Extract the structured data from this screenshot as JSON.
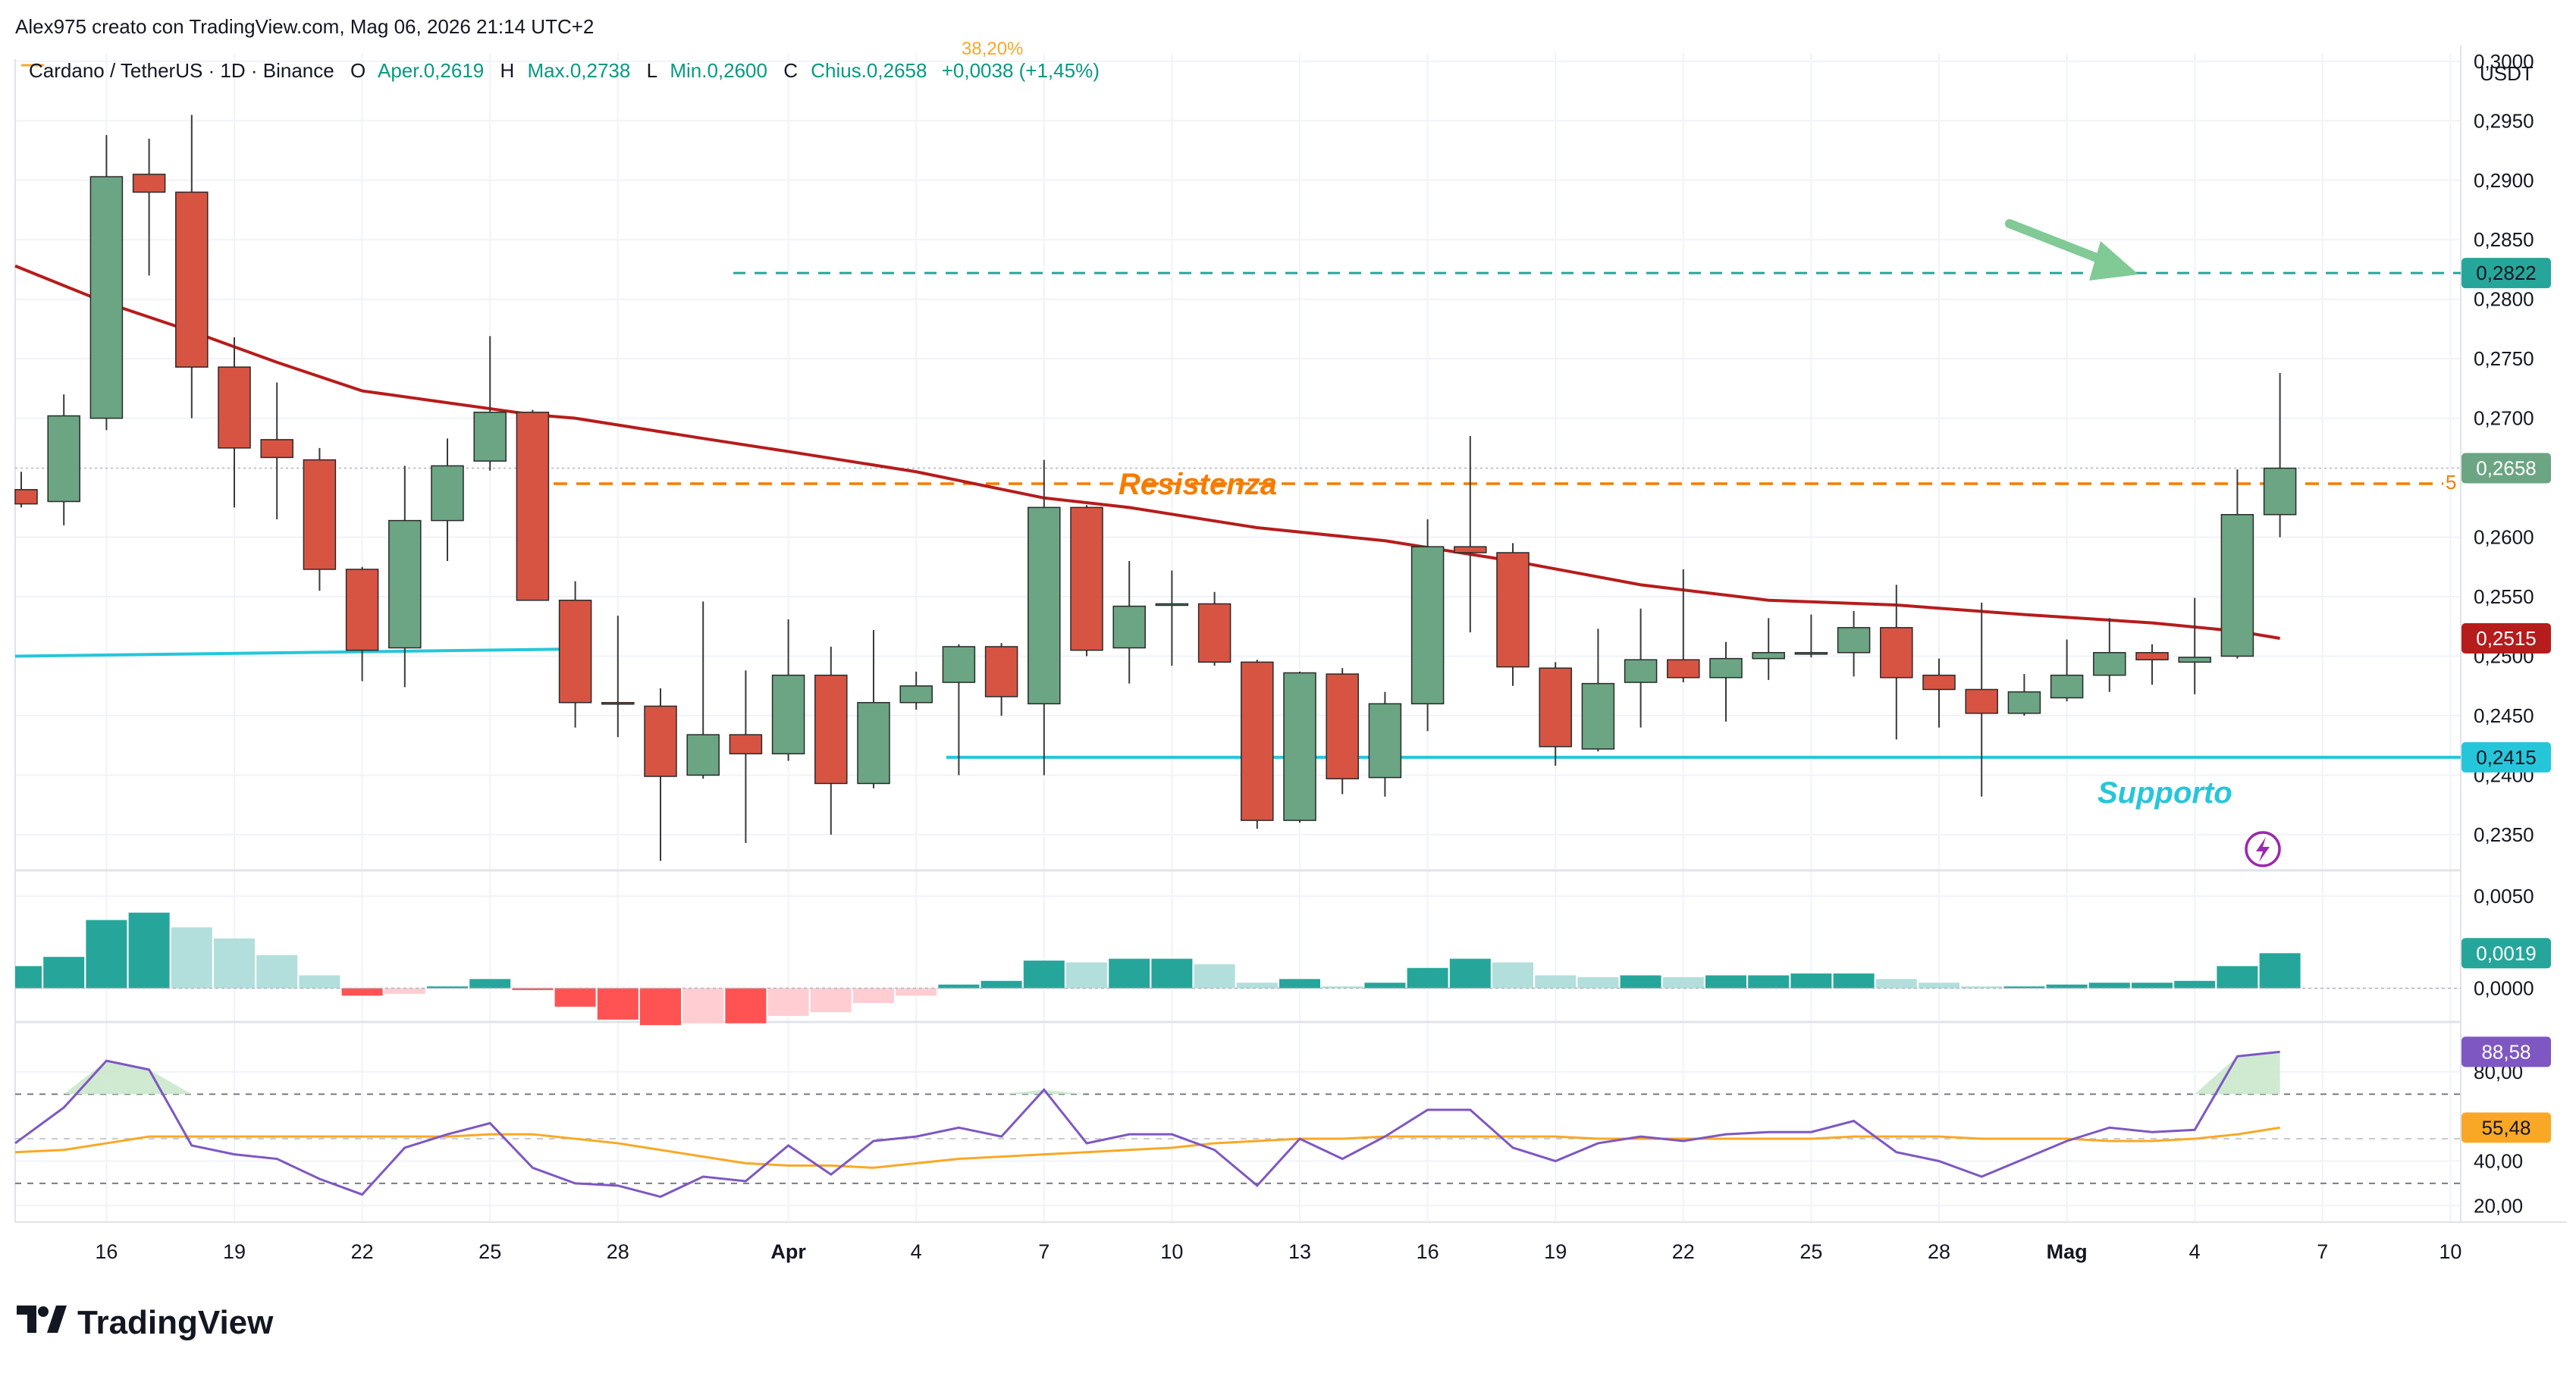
{
  "header": {
    "author_line": "Alex975 creato con TradingView.com, Mag 06, 2026 21:14 UTC+2",
    "symbol_line": "Cardano / TetherUS · 1D · Binance",
    "open_label": "O",
    "open_text": "Aper.0,2619",
    "high_label": "H",
    "high_text": "Max.0,2738",
    "low_label": "L",
    "low_text": "Min.0,2600",
    "close_label": "C",
    "close_text": "Chius.0,2658",
    "change_text": "+0,0038 (+1,45%)",
    "fib_label": "38,20%"
  },
  "axis": {
    "currency": "USDT",
    "price_ticks": [
      "0,3000",
      "0,2950",
      "0,2900",
      "0,2850",
      "0,2800",
      "0,2750",
      "0,2700",
      "0,2600",
      "0,2550",
      "0,2500",
      "0,2450",
      "0,2400",
      "0,2350"
    ],
    "macd_ticks": [
      "0,0050",
      "0,0000"
    ],
    "rsi_ticks": [
      "80,00",
      "40,00",
      "20,00"
    ],
    "x_ticks": [
      {
        "label": "16",
        "i": 2,
        "bold": false
      },
      {
        "label": "19",
        "i": 5,
        "bold": false
      },
      {
        "label": "22",
        "i": 8,
        "bold": false
      },
      {
        "label": "25",
        "i": 11,
        "bold": false
      },
      {
        "label": "28",
        "i": 14,
        "bold": false
      },
      {
        "label": "Apr",
        "i": 18,
        "bold": true
      },
      {
        "label": "4",
        "i": 21,
        "bold": false
      },
      {
        "label": "7",
        "i": 24,
        "bold": false
      },
      {
        "label": "10",
        "i": 27,
        "bold": false
      },
      {
        "label": "13",
        "i": 30,
        "bold": false
      },
      {
        "label": "16",
        "i": 33,
        "bold": false
      },
      {
        "label": "19",
        "i": 36,
        "bold": false
      },
      {
        "label": "22",
        "i": 39,
        "bold": false
      },
      {
        "label": "25",
        "i": 42,
        "bold": false
      },
      {
        "label": "28",
        "i": 45,
        "bold": false
      },
      {
        "label": "Mag",
        "i": 48,
        "bold": true
      },
      {
        "label": "4",
        "i": 51,
        "bold": false
      },
      {
        "label": "7",
        "i": 54,
        "bold": false
      },
      {
        "label": "10",
        "i": 57,
        "bold": false
      }
    ]
  },
  "badges": {
    "target": "0,2822",
    "last_price": "0,2658",
    "ma": "0,2515",
    "support": "0,2415",
    "macd": "0,0019",
    "rsi": "88,58",
    "rsi_ma": "55,48"
  },
  "annotations": {
    "resistance": "Resistenza",
    "support": "Supporto",
    "fib_right": "5"
  },
  "colors": {
    "up": "#6ba583",
    "down": "#d75442",
    "ma": "#b71c1c",
    "resistance": "#f57c00",
    "support": "#26c6da",
    "target": "#26a69a",
    "rsi": "#7e57c2",
    "rsi_ma": "#f9a825",
    "hist_up_strong": "#26a69a",
    "hist_up_weak": "#b2dfdb",
    "hist_down_strong": "#ff5252",
    "hist_down_weak": "#ffcdd2",
    "arrow": "#81c995"
  },
  "logo": {
    "text": "TradingView"
  },
  "chart_data": {
    "type": "candlestick",
    "symbol": "Cardano / TetherUS",
    "timeframe": "1D",
    "exchange": "Binance",
    "price_range": [
      0.232,
      0.3012
    ],
    "ohlc": [
      {
        "o": 0.264,
        "h": 0.2655,
        "l": 0.2625,
        "c": 0.2628
      },
      {
        "o": 0.263,
        "h": 0.272,
        "l": 0.261,
        "c": 0.2702
      },
      {
        "o": 0.27,
        "h": 0.2938,
        "l": 0.269,
        "c": 0.2903
      },
      {
        "o": 0.2905,
        "h": 0.2935,
        "l": 0.282,
        "c": 0.289
      },
      {
        "o": 0.289,
        "h": 0.2955,
        "l": 0.27,
        "c": 0.2743
      },
      {
        "o": 0.2743,
        "h": 0.2768,
        "l": 0.2625,
        "c": 0.2675
      },
      {
        "o": 0.2682,
        "h": 0.273,
        "l": 0.2615,
        "c": 0.2667
      },
      {
        "o": 0.2665,
        "h": 0.2675,
        "l": 0.2555,
        "c": 0.2573
      },
      {
        "o": 0.2573,
        "h": 0.2575,
        "l": 0.2479,
        "c": 0.2505
      },
      {
        "o": 0.2507,
        "h": 0.266,
        "l": 0.2474,
        "c": 0.2614
      },
      {
        "o": 0.2614,
        "h": 0.2683,
        "l": 0.258,
        "c": 0.266
      },
      {
        "o": 0.2664,
        "h": 0.2769,
        "l": 0.2656,
        "c": 0.2705
      },
      {
        "o": 0.2705,
        "h": 0.2707,
        "l": 0.2548,
        "c": 0.2547
      },
      {
        "o": 0.2547,
        "h": 0.2563,
        "l": 0.244,
        "c": 0.2461
      },
      {
        "o": 0.2461,
        "h": 0.2534,
        "l": 0.2432,
        "c": 0.246
      },
      {
        "o": 0.2458,
        "h": 0.2473,
        "l": 0.2328,
        "c": 0.2399
      },
      {
        "o": 0.24,
        "h": 0.2546,
        "l": 0.2397,
        "c": 0.2434
      },
      {
        "o": 0.2434,
        "h": 0.2488,
        "l": 0.2343,
        "c": 0.2418
      },
      {
        "o": 0.2418,
        "h": 0.2531,
        "l": 0.2412,
        "c": 0.2484
      },
      {
        "o": 0.2484,
        "h": 0.2508,
        "l": 0.235,
        "c": 0.2393
      },
      {
        "o": 0.2393,
        "h": 0.2522,
        "l": 0.2389,
        "c": 0.2461
      },
      {
        "o": 0.2461,
        "h": 0.2487,
        "l": 0.2455,
        "c": 0.2475
      },
      {
        "o": 0.2478,
        "h": 0.251,
        "l": 0.24,
        "c": 0.2508
      },
      {
        "o": 0.2508,
        "h": 0.2511,
        "l": 0.245,
        "c": 0.2466
      },
      {
        "o": 0.246,
        "h": 0.2665,
        "l": 0.24,
        "c": 0.2625
      },
      {
        "o": 0.2625,
        "h": 0.2627,
        "l": 0.25,
        "c": 0.2505
      },
      {
        "o": 0.2507,
        "h": 0.258,
        "l": 0.2477,
        "c": 0.2542
      },
      {
        "o": 0.2543,
        "h": 0.2572,
        "l": 0.2492,
        "c": 0.2544
      },
      {
        "o": 0.2544,
        "h": 0.2554,
        "l": 0.2492,
        "c": 0.2495
      },
      {
        "o": 0.2495,
        "h": 0.2497,
        "l": 0.2355,
        "c": 0.2362
      },
      {
        "o": 0.2362,
        "h": 0.2487,
        "l": 0.236,
        "c": 0.2486
      },
      {
        "o": 0.2485,
        "h": 0.249,
        "l": 0.2384,
        "c": 0.2397
      },
      {
        "o": 0.2398,
        "h": 0.247,
        "l": 0.2382,
        "c": 0.246
      },
      {
        "o": 0.246,
        "h": 0.2615,
        "l": 0.2437,
        "c": 0.2592
      },
      {
        "o": 0.2592,
        "h": 0.2685,
        "l": 0.252,
        "c": 0.2587
      },
      {
        "o": 0.2587,
        "h": 0.2595,
        "l": 0.2475,
        "c": 0.2491
      },
      {
        "o": 0.249,
        "h": 0.2495,
        "l": 0.2408,
        "c": 0.2424
      },
      {
        "o": 0.2422,
        "h": 0.2523,
        "l": 0.242,
        "c": 0.2477
      },
      {
        "o": 0.2478,
        "h": 0.254,
        "l": 0.244,
        "c": 0.2497
      },
      {
        "o": 0.2497,
        "h": 0.2573,
        "l": 0.2478,
        "c": 0.2482
      },
      {
        "o": 0.2482,
        "h": 0.2512,
        "l": 0.2445,
        "c": 0.2498
      },
      {
        "o": 0.2498,
        "h": 0.2532,
        "l": 0.248,
        "c": 0.2503
      },
      {
        "o": 0.2503,
        "h": 0.2535,
        "l": 0.2499,
        "c": 0.2503
      },
      {
        "o": 0.2503,
        "h": 0.2538,
        "l": 0.2483,
        "c": 0.2524
      },
      {
        "o": 0.2524,
        "h": 0.256,
        "l": 0.243,
        "c": 0.2482
      },
      {
        "o": 0.2484,
        "h": 0.2498,
        "l": 0.244,
        "c": 0.2472
      },
      {
        "o": 0.2472,
        "h": 0.2545,
        "l": 0.2382,
        "c": 0.2452
      },
      {
        "o": 0.2452,
        "h": 0.2485,
        "l": 0.245,
        "c": 0.247
      },
      {
        "o": 0.2465,
        "h": 0.2514,
        "l": 0.2462,
        "c": 0.2484
      },
      {
        "o": 0.2484,
        "h": 0.2532,
        "l": 0.247,
        "c": 0.2503
      },
      {
        "o": 0.2503,
        "h": 0.251,
        "l": 0.2476,
        "c": 0.2497
      },
      {
        "o": 0.2495,
        "h": 0.2549,
        "l": 0.2468,
        "c": 0.2499
      },
      {
        "o": 0.25,
        "h": 0.2657,
        "l": 0.2498,
        "c": 0.2619
      },
      {
        "o": 0.2619,
        "h": 0.2738,
        "l": 0.26,
        "c": 0.2658
      }
    ],
    "ma_line": [
      {
        "i": 0,
        "v": 0.2828
      },
      {
        "i": 2,
        "v": 0.2797
      },
      {
        "i": 4,
        "v": 0.2773
      },
      {
        "i": 6,
        "v": 0.2747
      },
      {
        "i": 8,
        "v": 0.2723
      },
      {
        "i": 10,
        "v": 0.2713
      },
      {
        "i": 12,
        "v": 0.2703
      },
      {
        "i": 13,
        "v": 0.27
      },
      {
        "i": 16,
        "v": 0.2683
      },
      {
        "i": 18,
        "v": 0.2672
      },
      {
        "i": 21,
        "v": 0.2655
      },
      {
        "i": 24,
        "v": 0.2633
      },
      {
        "i": 26,
        "v": 0.2625
      },
      {
        "i": 29,
        "v": 0.2608
      },
      {
        "i": 32,
        "v": 0.2597
      },
      {
        "i": 35,
        "v": 0.258
      },
      {
        "i": 38,
        "v": 0.256
      },
      {
        "i": 41,
        "v": 0.2547
      },
      {
        "i": 44,
        "v": 0.2543
      },
      {
        "i": 47,
        "v": 0.2535
      },
      {
        "i": 50,
        "v": 0.2528
      },
      {
        "i": 52,
        "v": 0.2521
      },
      {
        "i": 53,
        "v": 0.2515
      }
    ],
    "levels": {
      "resistance": 0.2645,
      "support": 0.2415,
      "target": 0.2822,
      "last": 0.2658,
      "ma_last": 0.2515,
      "old_support_line": [
        {
          "i": 0,
          "v": 0.25
        },
        {
          "i": 12.9,
          "v": 0.2506
        }
      ]
    },
    "macd_hist": {
      "range": [
        -0.0015,
        0.0059
      ],
      "values": [
        0.0012,
        0.0017,
        0.0037,
        0.0041,
        0.0033,
        0.0027,
        0.0018,
        0.0007,
        -0.0004,
        -0.0003,
        0.0001,
        0.0005,
        -0.0001,
        -0.001,
        -0.0017,
        -0.002,
        -0.0019,
        -0.0019,
        -0.0015,
        -0.0013,
        -0.0008,
        -0.0004,
        0.0002,
        0.0004,
        0.0015,
        0.0014,
        0.0016,
        0.0016,
        0.0013,
        0.0003,
        0.0005,
        0.0001,
        0.0003,
        0.0011,
        0.0016,
        0.0014,
        0.0007,
        0.0006,
        0.0007,
        0.0006,
        0.0007,
        0.0007,
        0.0008,
        0.0008,
        0.0005,
        0.0003,
        0.0001,
        0.0001,
        0.0002,
        0.0003,
        0.0003,
        0.0004,
        0.0012,
        0.0019
      ]
    },
    "rsi": {
      "range": [
        15,
        100
      ],
      "levels": [
        70,
        50,
        30
      ],
      "values": [
        48,
        64,
        85,
        81,
        47,
        43,
        41,
        32,
        25,
        46,
        52,
        57,
        37,
        30,
        29,
        24,
        33,
        31,
        47,
        34,
        49,
        51,
        55,
        51,
        72,
        48,
        52,
        52,
        45,
        29,
        50,
        41,
        51,
        63,
        63,
        46,
        40,
        48,
        51,
        49,
        52,
        53,
        53,
        58,
        44,
        40,
        33,
        41,
        49,
        55,
        53,
        54,
        87,
        89
      ],
      "ma_values": [
        44,
        45,
        48,
        51,
        51,
        51,
        51,
        51,
        51,
        51,
        51,
        52,
        52,
        50,
        48,
        45,
        42,
        39,
        38,
        38,
        37,
        39,
        41,
        42,
        43,
        44,
        45,
        46,
        48,
        49,
        50,
        50,
        51,
        51,
        51,
        51,
        51,
        50,
        50,
        50,
        50,
        50,
        50,
        51,
        51,
        51,
        50,
        50,
        50,
        49,
        49,
        50,
        52,
        55
      ]
    }
  }
}
